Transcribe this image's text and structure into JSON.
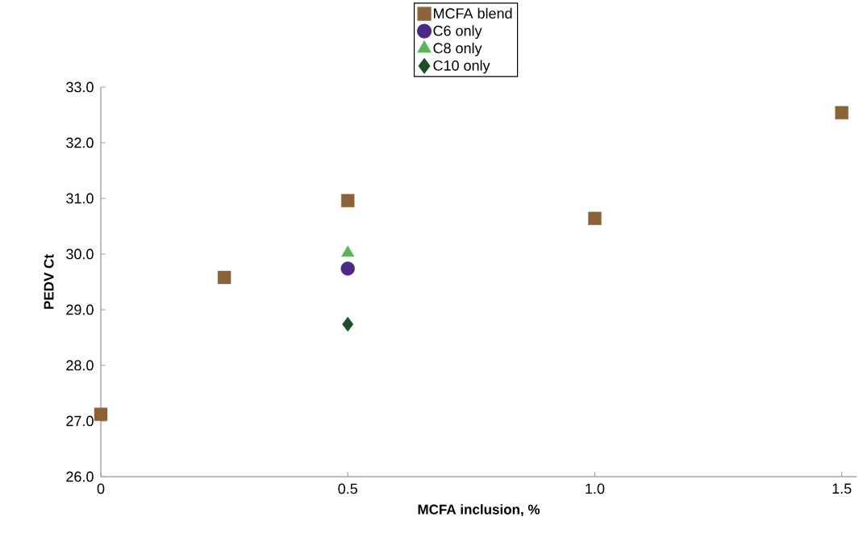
{
  "chart_data": {
    "type": "scatter",
    "xlabel": "MCFA inclusion, %",
    "ylabel": "PEDV Ct",
    "xlim": [
      0,
      1.53
    ],
    "ylim": [
      26,
      33
    ],
    "xticks": [
      0,
      {
        "value": 0.5,
        "label": "0.5"
      },
      {
        "value": 1.0,
        "label": "1.0"
      },
      {
        "value": 1.5,
        "label": "1.5"
      }
    ],
    "yticks": [
      {
        "value": 26,
        "label": "26.0"
      },
      {
        "value": 27,
        "label": "27.0"
      },
      {
        "value": 28,
        "label": "28.0"
      },
      {
        "value": 29,
        "label": "29.0"
      },
      {
        "value": 30,
        "label": "30.0"
      },
      {
        "value": 31,
        "label": "31.0"
      },
      {
        "value": 32,
        "label": "32.0"
      },
      {
        "value": 33,
        "label": "33.0"
      }
    ],
    "grid": false,
    "legend": "top",
    "series": [
      {
        "name": "MCFA blend",
        "color": "#8c6239",
        "marker": "square",
        "x": [
          0,
          0.25,
          0.5,
          1.0,
          1.5
        ],
        "values": [
          27.12,
          29.58,
          30.96,
          30.64,
          32.54
        ]
      },
      {
        "name": "C6 only",
        "color": "#4b2a85",
        "marker": "circle",
        "x": [
          0.5
        ],
        "values": [
          29.74
        ]
      },
      {
        "name": "C8 only",
        "color": "#57b65a",
        "marker": "triangle",
        "x": [
          0.5
        ],
        "values": [
          30.02
        ]
      },
      {
        "name": "C10 only",
        "color": "#1e4d2b",
        "marker": "diamond",
        "x": [
          0.5
        ],
        "values": [
          28.74
        ]
      }
    ]
  }
}
